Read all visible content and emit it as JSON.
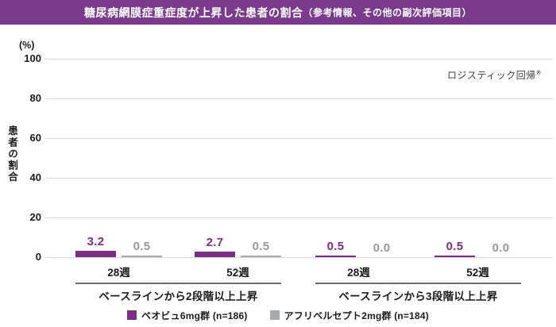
{
  "header": {
    "title_main": "糖尿病網膜症重症度が上昇した患者の割合",
    "title_sub": "（参考情報、その他の副次評価項目）",
    "bg_color": "#7A3B8C"
  },
  "annotation": {
    "text": "ロジスティック回帰",
    "sup": "※"
  },
  "chart_data": {
    "type": "bar",
    "title": "糖尿病網膜症重症度が上昇した患者の割合（参考情報、その他の副次評価項目）",
    "ylabel": "患者の割合",
    "unit": "(%)",
    "ylim": [
      0,
      100
    ],
    "yticks": [
      0,
      20,
      40,
      60,
      80,
      100
    ],
    "grid": "horizontal",
    "legend_position": "bottom",
    "series": [
      {
        "name": "ベオビュ6mg群 (n=186)",
        "color": "#7B2E84",
        "label_color": "#7B2E84"
      },
      {
        "name": "アフリベルセプト2mg群 (n=184)",
        "color": "#A7A9AC",
        "label_color": "#97999C"
      }
    ],
    "groups": [
      {
        "label": "ベースラインから2段階以上上昇",
        "timepoints": [
          {
            "label": "28週",
            "values": [
              3.2,
              0.5
            ]
          },
          {
            "label": "52週",
            "values": [
              2.7,
              0.5
            ]
          }
        ]
      },
      {
        "label": "ベースラインから3段階以上上昇",
        "timepoints": [
          {
            "label": "28週",
            "values": [
              0.5,
              0.0
            ]
          },
          {
            "label": "52週",
            "values": [
              0.5,
              0.0
            ]
          }
        ]
      }
    ]
  }
}
